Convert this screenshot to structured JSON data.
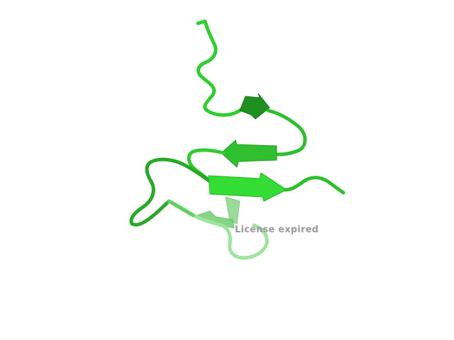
{
  "watermark": {
    "text": "License expired",
    "color": "#9a9a9a"
  },
  "structure": {
    "representation": "cartoon",
    "colors": {
      "coil": "#33cc33",
      "coil_dark": "#1f9a1f",
      "sheet_dark": "#1f8f1f",
      "sheet_mid": "#2fbf2f",
      "sheet_bright": "#33dd33",
      "faded": "#9fe39f"
    }
  }
}
